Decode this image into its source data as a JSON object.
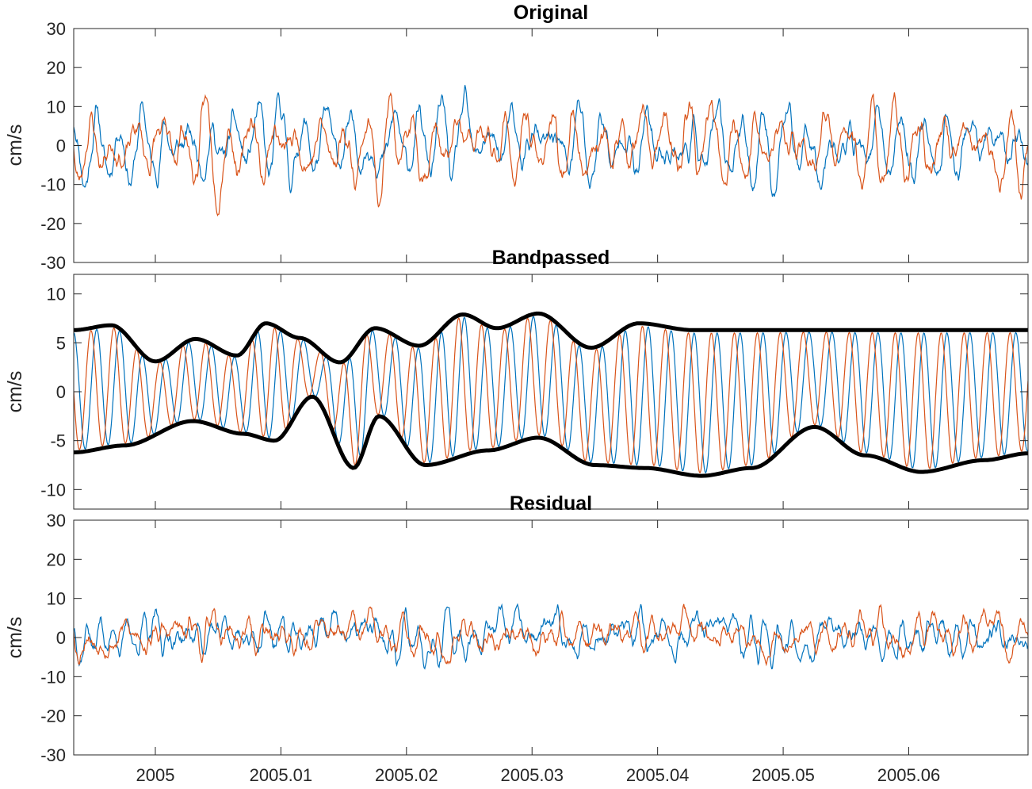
{
  "colors": {
    "blue": "#0072BD",
    "orange": "#D95319",
    "envelope": "#000000",
    "axis": "#262626"
  },
  "chart_data": [
    {
      "type": "line",
      "title": "Original",
      "ylabel": "cm/s",
      "xlim": [
        2004.9935,
        2005.0695
      ],
      "ylim": [
        -30,
        30
      ],
      "yticks": [
        "-30",
        "-20",
        "-10",
        "0",
        "10",
        "20",
        "30"
      ],
      "grid": false,
      "series": [
        {
          "color": "blue",
          "synth": "osc",
          "period": 0.00183,
          "amp": 8.5,
          "noise": 3.2,
          "bias": 0,
          "seed": 11
        },
        {
          "color": "orange",
          "synth": "osc",
          "period": 0.00183,
          "amp": 8.5,
          "noise": 3.2,
          "bias": 0,
          "phase": 1.57,
          "seed": 23
        }
      ]
    },
    {
      "type": "line",
      "title": "Bandpassed",
      "ylabel": "cm/s",
      "xlim": [
        2004.9935,
        2005.0695
      ],
      "ylim": [
        -12,
        12
      ],
      "yticks": [
        "-10",
        "-5",
        "0",
        "5",
        "10"
      ],
      "grid": false,
      "envelope_upper": {
        "x": [
          2004.9935,
          2004.9965,
          2005.0,
          2005.0032,
          2005.0065,
          2005.0088,
          2005.0115,
          2005.0147,
          2005.0175,
          2005.021,
          2005.0245,
          2005.0272,
          2005.0305,
          2005.0347,
          2005.0385,
          2005.0428,
          2005.0465,
          2005.0505,
          2005.0545,
          2005.0588,
          2005.0625,
          2005.066,
          2005.0695
        ],
        "y": [
          6.3,
          6.8,
          3.1,
          5.4,
          3.7,
          7.0,
          5.5,
          3.0,
          6.5,
          4.7,
          7.9,
          6.5,
          8.0,
          4.5,
          7.0,
          6.3,
          6.3,
          6.3,
          6.3,
          6.3,
          6.3,
          6.3,
          6.3
        ]
      },
      "envelope_lower": {
        "x": [
          2004.9935,
          2004.9975,
          2005.003,
          2005.007,
          2005.0095,
          2005.0125,
          2005.0158,
          2005.0178,
          2005.0215,
          2005.0265,
          2005.0305,
          2005.035,
          2005.039,
          2005.0435,
          2005.0475,
          2005.0525,
          2005.0565,
          2005.061,
          2005.066,
          2005.0695
        ],
        "y": [
          -6.2,
          -5.5,
          -3.0,
          -4.3,
          -5.0,
          -0.5,
          -7.8,
          -2.5,
          -7.5,
          -6.0,
          -4.7,
          -7.5,
          -7.8,
          -8.6,
          -7.8,
          -3.6,
          -6.5,
          -8.2,
          -7.0,
          -6.3
        ]
      },
      "series": [
        {
          "color": "blue",
          "synth": "band",
          "period": 0.00183,
          "phase": 0.0
        },
        {
          "color": "orange",
          "synth": "band",
          "period": 0.00183,
          "phase": 1.57
        }
      ]
    },
    {
      "type": "line",
      "title": "Residual",
      "ylabel": "cm/s",
      "xlim": [
        2004.9935,
        2005.0695
      ],
      "ylim": [
        -30,
        30
      ],
      "yticks": [
        "-30",
        "-20",
        "-10",
        "0",
        "10",
        "20",
        "30"
      ],
      "xticks": [
        2005.0,
        2005.01,
        2005.02,
        2005.03,
        2005.04,
        2005.05,
        2005.06
      ],
      "xticklabels": [
        "2005",
        "2005.01",
        "2005.02",
        "2005.03",
        "2005.04",
        "2005.05",
        "2005.06"
      ],
      "grid": false,
      "series": [
        {
          "color": "blue",
          "synth": "osc",
          "period": 0.0011,
          "amp": 3.5,
          "noise": 2.6,
          "bias": 0.5,
          "seed": 37
        },
        {
          "color": "orange",
          "synth": "osc",
          "period": 0.0014,
          "amp": 3.2,
          "noise": 2.6,
          "bias": 0.8,
          "phase": 1.2,
          "seed": 53
        }
      ]
    }
  ]
}
